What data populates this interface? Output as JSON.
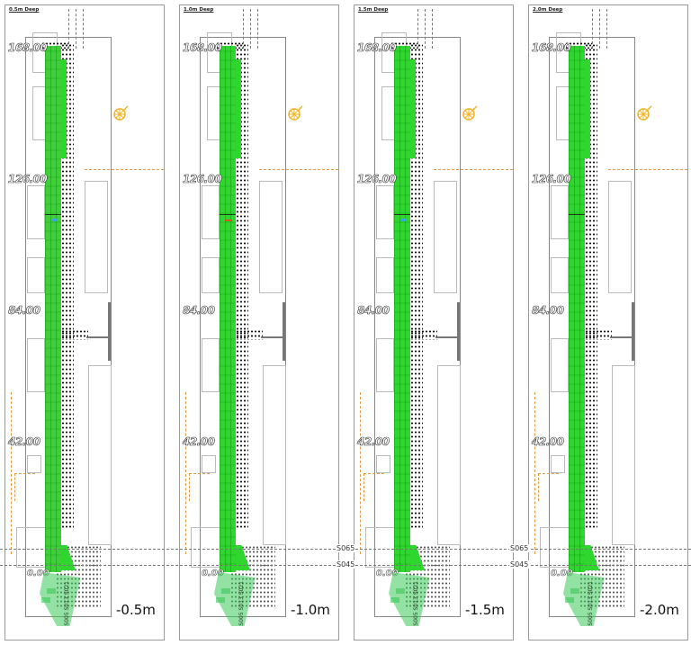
{
  "figure": {
    "panels": [
      {
        "title": "0.5m Deep",
        "depth_label": "-0.5m"
      },
      {
        "title": "1.0m Deep",
        "depth_label": "-1.0m"
      },
      {
        "title": "1.5m Deep",
        "depth_label": "-1.5m"
      },
      {
        "title": "2.0m Deep",
        "depth_label": "-2.0m"
      }
    ],
    "elevation_labels": [
      "168.00",
      "126.00",
      "84.00",
      "42.00",
      "0.00"
    ],
    "section_lines": [
      {
        "label": "S065"
      },
      {
        "label": "S045"
      }
    ],
    "section_ids": "S005 S013 S021",
    "colors": {
      "survey_fill": "#2ed62e",
      "anomaly_blue": "#3aa6e0",
      "anomaly_red": "#d6542a",
      "compass": "#f0b429",
      "boundary": "#e59a4a"
    },
    "compass_icon": "north-arrow-icon"
  }
}
